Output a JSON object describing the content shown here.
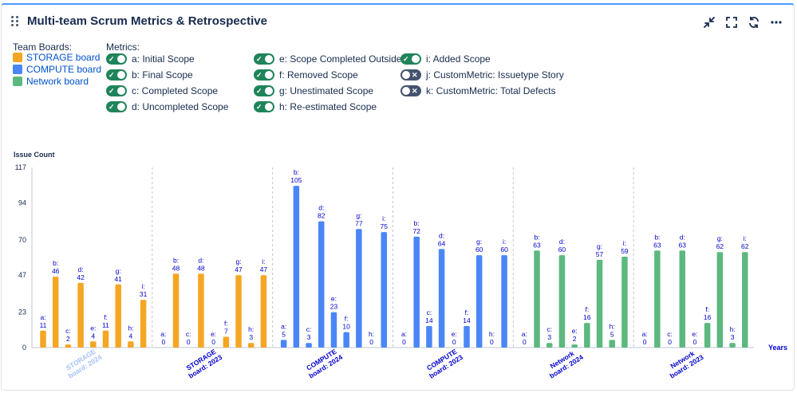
{
  "panel": {
    "title": "Multi-team Scrum Metrics & Retrospective"
  },
  "toolbar": {
    "icons": [
      "collapse-icon",
      "fullscreen-icon",
      "refresh-icon",
      "more-icon"
    ],
    "more_label": "···"
  },
  "legend": {
    "team_boards_label": "Team Boards:",
    "boards": [
      {
        "label": "STORAGE board",
        "color": "#f5a623"
      },
      {
        "label": "COMPUTE board",
        "color": "#4a86f7"
      },
      {
        "label": "Network board",
        "color": "#5cb87f"
      }
    ],
    "metrics_label": "Metrics:",
    "metrics": [
      {
        "label": "a: Initial Scope",
        "on": true
      },
      {
        "label": "b: Final Scope",
        "on": true
      },
      {
        "label": "c: Completed Scope",
        "on": true
      },
      {
        "label": "d: Uncompleted Scope",
        "on": true
      },
      {
        "label": "e: Scope Completed Outside",
        "on": true
      },
      {
        "label": "f: Removed Scope",
        "on": true
      },
      {
        "label": "g: Unestimated Scope",
        "on": true
      },
      {
        "label": "h: Re-estimated Scope",
        "on": true
      },
      {
        "label": "i: Added Scope",
        "on": true
      },
      {
        "label": "j: CustomMetric: Issuetype Story",
        "on": false
      },
      {
        "label": "k: CustomMetric: Total Defects",
        "on": false
      }
    ]
  },
  "chart_data": {
    "type": "bar",
    "ylabel": "Issue Count",
    "xlabel": "Years",
    "ylim": [
      0,
      117
    ],
    "yticks": [
      0,
      23,
      47,
      70,
      94,
      117
    ],
    "metric_keys": [
      "a",
      "b",
      "c",
      "d",
      "e",
      "f",
      "g",
      "h",
      "i"
    ],
    "groups": [
      {
        "board": "STORAGE",
        "label": "STORAGE board: 2024",
        "color": "#f5a623",
        "faded_label": true,
        "values": [
          11,
          46,
          2,
          42,
          4,
          11,
          41,
          4,
          31
        ]
      },
      {
        "board": "STORAGE",
        "label": "STORAGE board: 2023",
        "color": "#f5a623",
        "faded_label": false,
        "values": [
          0,
          48,
          0,
          48,
          0,
          7,
          47,
          3,
          47
        ]
      },
      {
        "board": "COMPUTE",
        "label": "COMPUTE board: 2024",
        "color": "#4a86f7",
        "faded_label": false,
        "values": [
          5,
          105,
          3,
          82,
          23,
          10,
          77,
          0,
          75
        ]
      },
      {
        "board": "COMPUTE",
        "label": "COMPUTE board: 2023",
        "color": "#4a86f7",
        "faded_label": false,
        "values": [
          0,
          72,
          14,
          64,
          0,
          14,
          60,
          0,
          60
        ]
      },
      {
        "board": "Network",
        "label": "Network board: 2024",
        "color": "#5cb87f",
        "faded_label": false,
        "values": [
          0,
          63,
          3,
          60,
          2,
          16,
          57,
          5,
          59
        ]
      },
      {
        "board": "Network",
        "label": "Network board: 2023",
        "color": "#5cb87f",
        "faded_label": false,
        "values": [
          0,
          63,
          0,
          63,
          0,
          16,
          62,
          3,
          62
        ]
      }
    ]
  }
}
